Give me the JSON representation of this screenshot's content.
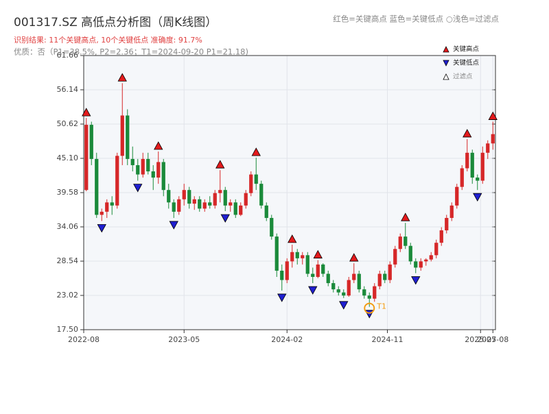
{
  "chart_data": {
    "type": "candlestick",
    "title": "001317.SZ 高低点分析图（周K线图）",
    "subtitle": "识别结果: 11个关键高点, 10个关键低点  准确度: 91.7%",
    "note": "优质：否（P1=38.5%, P2=2.36；T1=2024-09-20 P1=21.18)",
    "header_legend": "红色=关键高点     蓝色=关键低点   ○浅色=过滤点",
    "up_color": "#d62728",
    "down_color": "#1a8a3a",
    "grid": true,
    "ylim": [
      17.5,
      61.66
    ],
    "yticks": [
      {
        "value": 17.5,
        "label": "17.50"
      },
      23.02,
      28.54,
      34.06,
      39.58,
      {
        "value": 45.1,
        "label": "45.10"
      },
      50.62,
      56.14,
      61.66
    ],
    "xlim": [
      -0.5,
      79.5
    ],
    "xticks": [
      {
        "value": -0.5,
        "label": "2022-08"
      },
      {
        "value": 19,
        "label": "2023-05"
      },
      {
        "value": 39,
        "label": "2024-02"
      },
      {
        "value": 58.5,
        "label": "2024-11"
      },
      {
        "value": 76.6,
        "label": "2025-07"
      },
      {
        "value": 79,
        "label": "2025-08"
      }
    ],
    "ohlc": [
      [
        40,
        51.6,
        39.8,
        50.5
      ],
      [
        50.5,
        51,
        44,
        45
      ],
      [
        45,
        46,
        35.5,
        36
      ],
      [
        36,
        37,
        35,
        36.5
      ],
      [
        36.5,
        38.5,
        35.5,
        38
      ],
      [
        38,
        39,
        36,
        37.5
      ],
      [
        37.5,
        46,
        37,
        45.5
      ],
      [
        45.5,
        57.2,
        44,
        52
      ],
      [
        52,
        53,
        44,
        45
      ],
      [
        45,
        47,
        43,
        44
      ],
      [
        44,
        45,
        41.5,
        42.5
      ],
      [
        42.5,
        46,
        42,
        45
      ],
      [
        45,
        46,
        42.5,
        43
      ],
      [
        43,
        44,
        40,
        42
      ],
      [
        42,
        46.2,
        41,
        44.5
      ],
      [
        44.5,
        45,
        39,
        40
      ],
      [
        40,
        41,
        37,
        38
      ],
      [
        38,
        38.5,
        35.5,
        36.5
      ],
      [
        36.5,
        39,
        36,
        38.5
      ],
      [
        38.5,
        41,
        37.5,
        40
      ],
      [
        40,
        40.5,
        37,
        37.8
      ],
      [
        37.8,
        39,
        36.8,
        38.5
      ],
      [
        38.5,
        39,
        36.5,
        37
      ],
      [
        37,
        38.5,
        36.5,
        38
      ],
      [
        38,
        39,
        37,
        37.5
      ],
      [
        37.5,
        40,
        37,
        39.5
      ],
      [
        39.5,
        43.2,
        38,
        40
      ],
      [
        40,
        40.5,
        36.6,
        37.5
      ],
      [
        37.5,
        38.5,
        36.5,
        38
      ],
      [
        38,
        38.5,
        35.5,
        36
      ],
      [
        36,
        38,
        35.8,
        37.5
      ],
      [
        37.5,
        40,
        37,
        39.5
      ],
      [
        39.5,
        43,
        39,
        42.5
      ],
      [
        42.5,
        45.2,
        40,
        41
      ],
      [
        41,
        41.5,
        37,
        37.5
      ],
      [
        37.5,
        38,
        35,
        35.5
      ],
      [
        35.5,
        36,
        32,
        32.5
      ],
      [
        32.5,
        33,
        26,
        27
      ],
      [
        27,
        28,
        23.8,
        25.5
      ],
      [
        25.5,
        29,
        25,
        28.5
      ],
      [
        28.5,
        31.2,
        27.5,
        30
      ],
      [
        30,
        30.5,
        28,
        29
      ],
      [
        29,
        30,
        28,
        29.5
      ],
      [
        29.5,
        30,
        26,
        26.5
      ],
      [
        26.5,
        27.5,
        25,
        26
      ],
      [
        26,
        28.7,
        25.8,
        28
      ],
      [
        28,
        28.2,
        26,
        26.5
      ],
      [
        26.5,
        27,
        24.5,
        25
      ],
      [
        25,
        25.5,
        23.5,
        24
      ],
      [
        24,
        24.5,
        23,
        23.5
      ],
      [
        23.5,
        24,
        22.6,
        23
      ],
      [
        23,
        26,
        22.8,
        25.5
      ],
      [
        25.5,
        28.2,
        25,
        26.5
      ],
      [
        26.5,
        27,
        23.5,
        24
      ],
      [
        24,
        24.5,
        22.5,
        23
      ],
      [
        23,
        23.5,
        21.18,
        22.5
      ],
      [
        22.5,
        25,
        22,
        24.5
      ],
      [
        24.5,
        27,
        24,
        26.5
      ],
      [
        26.5,
        27,
        25,
        25.5
      ],
      [
        25.5,
        28.5,
        25,
        28
      ],
      [
        28,
        31,
        27.5,
        30.5
      ],
      [
        30.5,
        33,
        30,
        32.5
      ],
      [
        32.5,
        34.7,
        30.5,
        31
      ],
      [
        31,
        31.5,
        28,
        28.5
      ],
      [
        28.5,
        29,
        26.6,
        27.5
      ],
      [
        27.5,
        29,
        27,
        28.5
      ],
      [
        28.5,
        29,
        27.8,
        28.8
      ],
      [
        28.8,
        30,
        28.5,
        29.5
      ],
      [
        29.5,
        32,
        29,
        31.5
      ],
      [
        31.5,
        34,
        31,
        33.5
      ],
      [
        33.5,
        36,
        33,
        35.5
      ],
      [
        35.5,
        38,
        35,
        37.5
      ],
      [
        37.5,
        41,
        37,
        40.5
      ],
      [
        40.5,
        44,
        40,
        43.5
      ],
      [
        43.5,
        48.2,
        43,
        46
      ],
      [
        46,
        46.5,
        41,
        42
      ],
      [
        42,
        42.5,
        40,
        41.5
      ],
      [
        41.5,
        47,
        41,
        46
      ],
      [
        46,
        48,
        45,
        47.5
      ],
      [
        47.5,
        51,
        46.5,
        49
      ]
    ],
    "key_highs": [
      0,
      7,
      14,
      26,
      33,
      40,
      45,
      52,
      62,
      74,
      79
    ],
    "key_lows": [
      3,
      10,
      17,
      27,
      38,
      44,
      50,
      55,
      64,
      76
    ],
    "t1": {
      "label": "T1",
      "x": 55,
      "color": "#f39c12"
    },
    "legend": [
      {
        "name": "关键高点",
        "color": "#e31a1c"
      },
      {
        "name": "关键低点",
        "color": "#1f1fd0"
      },
      {
        "name": "过滤点",
        "color": "#ffffff"
      }
    ]
  }
}
